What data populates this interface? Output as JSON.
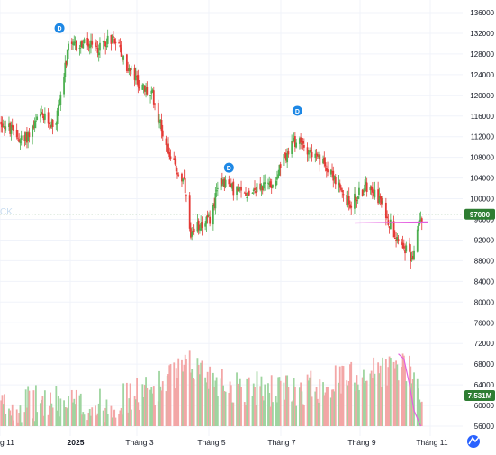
{
  "chart_data": {
    "type": "candlestick",
    "price_axis": {
      "ticks": [
        136000,
        132000,
        128000,
        124000,
        120000,
        116000,
        112000,
        108000,
        104000,
        100000,
        96000,
        92000,
        88000,
        84000,
        80000,
        76000,
        72000,
        68000,
        64000,
        60000,
        56000
      ]
    },
    "time_axis": {
      "labels": [
        "g 11",
        "2025",
        "Tháng 3",
        "Tháng 5",
        "Tháng 7",
        "Tháng 9",
        "Tháng 11"
      ]
    },
    "last_price": {
      "value": 97000,
      "label": "97000"
    },
    "volume_label": "7.531M",
    "watermark": "CK",
    "dividend_marker": "D",
    "dividend_markers": [
      {
        "approx_date": "2024-12",
        "price": 133000
      },
      {
        "approx_date": "2025-05",
        "price": 106000
      },
      {
        "approx_date": "2025-07",
        "price": 117000
      }
    ],
    "anchors": [
      [
        "2024-10-20",
        115000
      ],
      [
        "2024-11-10",
        111000
      ],
      [
        "2024-11-25",
        116000
      ],
      [
        "2024-12-08",
        114000
      ],
      [
        "2024-12-20",
        129000
      ],
      [
        "2025-01-02",
        130000
      ],
      [
        "2025-01-15",
        129000
      ],
      [
        "2025-01-25",
        131000
      ],
      [
        "2025-02-01",
        131000
      ],
      [
        "2025-02-08",
        126000
      ],
      [
        "2025-02-15",
        124000
      ],
      [
        "2025-02-25",
        121000
      ],
      [
        "2025-03-05",
        120000
      ],
      [
        "2025-03-15",
        112000
      ],
      [
        "2025-03-25",
        106000
      ],
      [
        "2025-04-02",
        103000
      ],
      [
        "2025-04-08",
        92000
      ],
      [
        "2025-04-15",
        95000
      ],
      [
        "2025-04-25",
        96000
      ],
      [
        "2025-05-05",
        104000
      ],
      [
        "2025-05-15",
        102000
      ],
      [
        "2025-05-25",
        101000
      ],
      [
        "2025-06-05",
        102000
      ],
      [
        "2025-06-20",
        103000
      ],
      [
        "2025-07-01",
        108000
      ],
      [
        "2025-07-10",
        111000
      ],
      [
        "2025-07-20",
        110000
      ],
      [
        "2025-08-01",
        107000
      ],
      [
        "2025-08-10",
        106000
      ],
      [
        "2025-08-20",
        101000
      ],
      [
        "2025-08-28",
        99000
      ],
      [
        "2025-09-05",
        101000
      ],
      [
        "2025-09-15",
        103000
      ],
      [
        "2025-09-25",
        99000
      ],
      [
        "2025-10-05",
        94000
      ],
      [
        "2025-10-15",
        91000
      ],
      [
        "2025-10-22",
        88000
      ],
      [
        "2025-10-28",
        95000
      ],
      [
        "2025-11-01",
        97000
      ]
    ],
    "volume_shape": [
      [
        "2024-10-20",
        59000
      ],
      [
        "2024-12-01",
        60000
      ],
      [
        "2025-01-15",
        59000
      ],
      [
        "2025-03-01",
        62000
      ],
      [
        "2025-04-10",
        67000
      ],
      [
        "2025-05-15",
        63000
      ],
      [
        "2025-07-01",
        62000
      ],
      [
        "2025-08-15",
        64000
      ],
      [
        "2025-09-20",
        66000
      ],
      [
        "2025-10-15",
        67000
      ],
      [
        "2025-11-01",
        62000
      ]
    ],
    "colors": {
      "up": "#4caf50",
      "down": "#e53935",
      "volume_up": "#9fd5a0",
      "volume_down": "#f3a6a6",
      "last_price": "#2e7d32",
      "pink_line": "#e45ee0",
      "marker": "#1e88e5",
      "grid": "#f0f3fa"
    }
  }
}
